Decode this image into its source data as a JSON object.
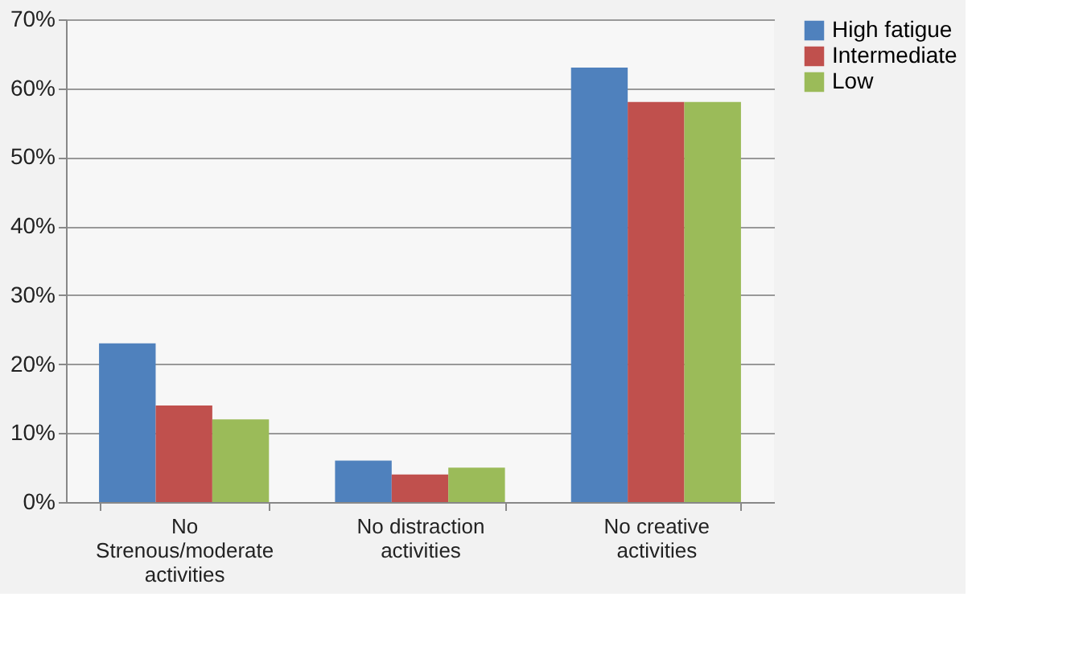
{
  "chart_data": {
    "type": "bar",
    "categories": [
      "No Strenous/moderate activities",
      "No distraction activities",
      "No creative activities"
    ],
    "series": [
      {
        "name": "High fatigue",
        "color": "#4f81bd",
        "values": [
          23,
          6,
          63
        ]
      },
      {
        "name": "Intermediate",
        "color": "#c0504d",
        "values": [
          14,
          4,
          58
        ]
      },
      {
        "name": "Low",
        "color": "#9bbb59",
        "values": [
          12,
          5,
          58
        ]
      }
    ],
    "ylim": [
      0,
      70
    ],
    "yticks": [
      {
        "value": 0,
        "label": "0%"
      },
      {
        "value": 10,
        "label": "10%"
      },
      {
        "value": 20,
        "label": "20%"
      },
      {
        "value": 30,
        "label": "30%"
      },
      {
        "value": 40,
        "label": "40%"
      },
      {
        "value": 50,
        "label": "50%"
      },
      {
        "value": 60,
        "label": "60%"
      },
      {
        "value": 70,
        "label": "70%"
      }
    ],
    "grid": "y",
    "legend": "right"
  }
}
